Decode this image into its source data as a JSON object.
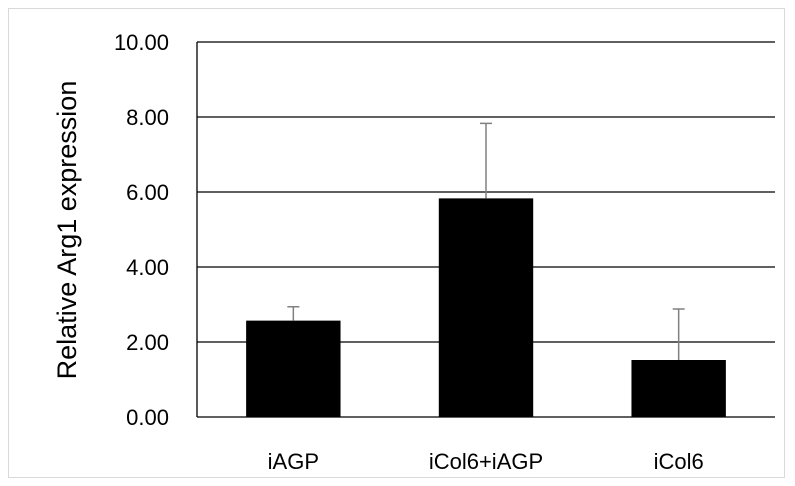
{
  "chart_data": {
    "type": "bar",
    "title": "",
    "xlabel": "",
    "ylabel": "Relative Arg1 expression",
    "categories": [
      "iAGP",
      "iCol6+iAGP",
      "iCol6"
    ],
    "values": [
      2.57,
      5.83,
      1.52
    ],
    "errors": [
      0.37,
      2.0,
      1.36
    ],
    "ylim": [
      0,
      10
    ],
    "yticks": [
      "0.00",
      "2.00",
      "4.00",
      "6.00",
      "8.00",
      "10.00"
    ],
    "grid": true,
    "legend": "none",
    "colors": {
      "bar": "#000000",
      "error_bar": "#808080",
      "grid": "#000000"
    }
  }
}
